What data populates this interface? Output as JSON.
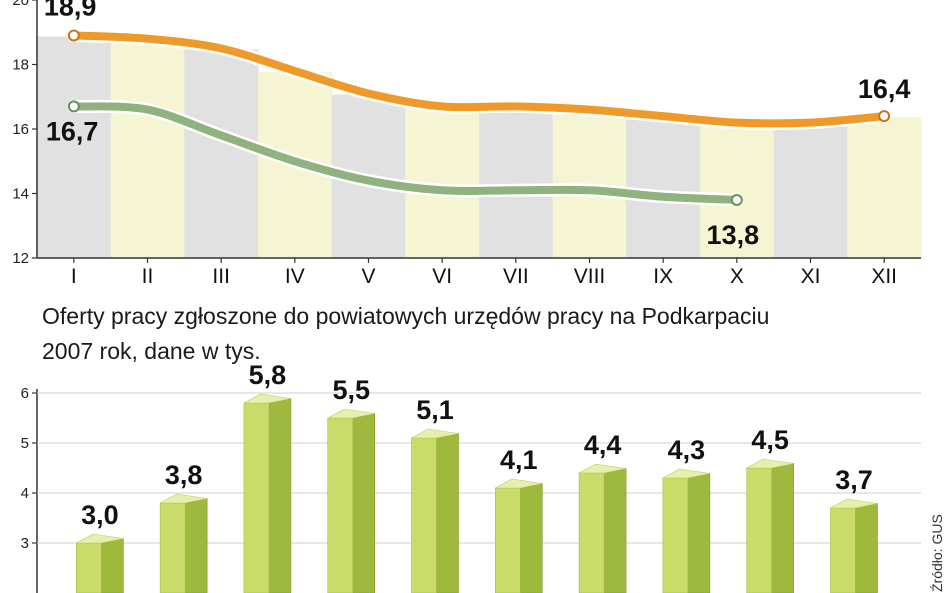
{
  "colors": {
    "orange": "#ee9a2a",
    "orange_edge": "#c9731a",
    "green": "#8fb27f",
    "green_edge": "#6a8d5b",
    "band_gray": "#e1e1e1",
    "band_yellow": "#f6f5d3",
    "bar_front": "#c9dc6a",
    "bar_side": "#9fb93f",
    "bar_top": "#e6efab"
  },
  "chart_data": [
    {
      "type": "line",
      "categories": [
        "I",
        "II",
        "III",
        "IV",
        "V",
        "VI",
        "VII",
        "VIII",
        "IX",
        "X",
        "XI",
        "XII"
      ],
      "ylim": [
        12,
        20
      ],
      "yticks": [
        "12",
        "14",
        "16",
        "18",
        "20"
      ],
      "series": [
        {
          "name": "orange",
          "values": [
            18.9,
            18.8,
            18.5,
            17.8,
            17.1,
            16.7,
            16.7,
            16.6,
            16.4,
            16.2,
            16.2,
            16.4
          ]
        },
        {
          "name": "green",
          "values": [
            16.7,
            16.6,
            15.8,
            15.0,
            14.4,
            14.1,
            14.1,
            14.1,
            13.9,
            13.8,
            null,
            null
          ]
        }
      ],
      "labels": [
        {
          "text": "18,9",
          "series": 0,
          "index": 0
        },
        {
          "text": "16,7",
          "series": 1,
          "index": 0
        },
        {
          "text": "16,4",
          "series": 0,
          "index": 11
        },
        {
          "text": "13,8",
          "series": 1,
          "index": 9
        }
      ]
    },
    {
      "type": "bar",
      "title": "Oferty pracy zgłoszone do powiatowych urzędów pracy na Podkarpaciu",
      "subtitle": "2007 rok, dane w tys.",
      "ylim": [
        2,
        6
      ],
      "yticks": [
        "3",
        "4",
        "5",
        "6"
      ],
      "values": [
        3.0,
        3.8,
        5.8,
        5.5,
        5.1,
        4.1,
        4.4,
        4.3,
        4.5,
        3.7
      ],
      "value_labels": [
        "3,0",
        "3,8",
        "5,8",
        "5,5",
        "5,1",
        "4,1",
        "4,4",
        "4,3",
        "4,5",
        "3,7"
      ],
      "source": "Źródło: GUS"
    }
  ]
}
